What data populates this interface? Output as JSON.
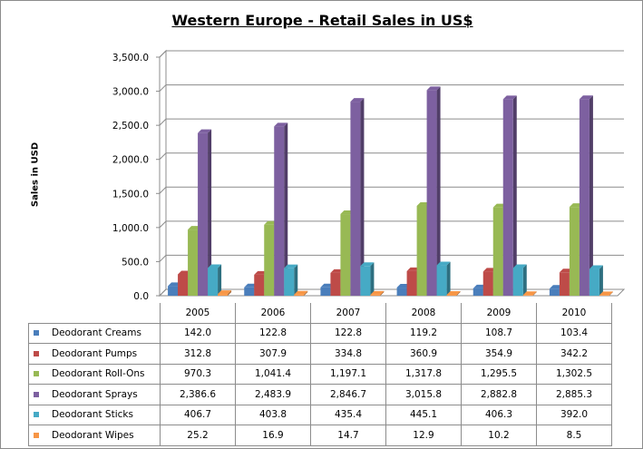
{
  "chart_data": {
    "type": "bar",
    "title": "Western Europe - Retail Sales in US$",
    "xlabel": "",
    "ylabel": "Sales in USD",
    "ylim": [
      0,
      3500
    ],
    "yticks": [
      "0.0",
      "500.0",
      "1,000.0",
      "1,500.0",
      "2,000.0",
      "2,500.0",
      "3,000.0",
      "3,500.0"
    ],
    "ytick_values": [
      0,
      500,
      1000,
      1500,
      2000,
      2500,
      3000,
      3500
    ],
    "grid": true,
    "legend": "data-table",
    "categories": [
      "2005",
      "2006",
      "2007",
      "2008",
      "2009",
      "2010"
    ],
    "series": [
      {
        "name": "Deodorant Creams",
        "color": "#4a7ebb",
        "values": [
          142.0,
          122.8,
          122.8,
          119.2,
          108.7,
          103.4
        ],
        "labels": [
          "142.0",
          "122.8",
          "122.8",
          "119.2",
          "108.7",
          "103.4"
        ]
      },
      {
        "name": "Deodorant Pumps",
        "color": "#be4b48",
        "values": [
          312.8,
          307.9,
          334.8,
          360.9,
          354.9,
          342.2
        ],
        "labels": [
          "312.8",
          "307.9",
          "334.8",
          "360.9",
          "354.9",
          "342.2"
        ]
      },
      {
        "name": "Deodorant Roll-Ons",
        "color": "#98b954",
        "values": [
          970.3,
          1041.4,
          1197.1,
          1317.8,
          1295.5,
          1302.5
        ],
        "labels": [
          "970.3",
          "1,041.4",
          "1,197.1",
          "1,317.8",
          "1,295.5",
          "1,302.5"
        ]
      },
      {
        "name": "Deodorant Sprays",
        "color": "#7d60a0",
        "values": [
          2386.6,
          2483.9,
          2846.7,
          3015.8,
          2882.8,
          2885.3
        ],
        "labels": [
          "2,386.6",
          "2,483.9",
          "2,846.7",
          "3,015.8",
          "2,882.8",
          "2,885.3"
        ]
      },
      {
        "name": "Deodorant Sticks",
        "color": "#46aac5",
        "values": [
          406.7,
          403.8,
          435.4,
          445.1,
          406.3,
          392.0
        ],
        "labels": [
          "406.7",
          "403.8",
          "435.4",
          "445.1",
          "406.3",
          "392.0"
        ]
      },
      {
        "name": "Deodorant Wipes",
        "color": "#f79646",
        "values": [
          25.2,
          16.9,
          14.7,
          12.9,
          10.2,
          8.5
        ],
        "labels": [
          "25.2",
          "16.9",
          "14.7",
          "12.9",
          "10.2",
          "8.5"
        ]
      }
    ]
  }
}
